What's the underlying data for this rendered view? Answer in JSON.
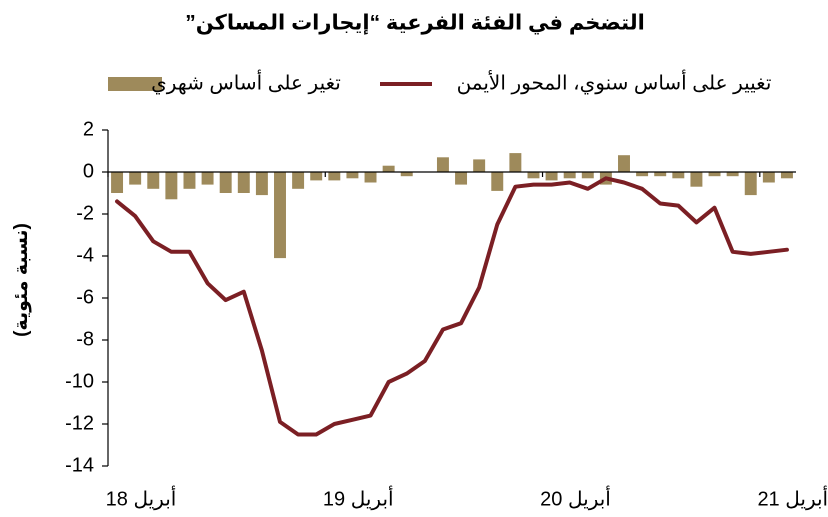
{
  "chart_data": {
    "type": "bar-line",
    "title": "التضخم في الفئة الفرعية “إيجارات المساكن”",
    "y_label": "(نسبة مئوية)",
    "categories": [
      "أبريل 18",
      null,
      null,
      null,
      null,
      null,
      null,
      null,
      null,
      null,
      null,
      null,
      "أبريل 19",
      null,
      null,
      null,
      null,
      null,
      null,
      null,
      null,
      null,
      null,
      null,
      "أبريل 20",
      null,
      null,
      null,
      null,
      null,
      null,
      null,
      null,
      null,
      null,
      null,
      "أبريل 21",
      null
    ],
    "series": [
      {
        "name": "تغير على أساس شهري",
        "type": "bar",
        "color": "#9e8a5b",
        "values": [
          -1.0,
          -0.6,
          -0.8,
          -1.3,
          -0.8,
          -0.6,
          -1.0,
          -1.0,
          -1.1,
          -4.1,
          -0.8,
          -0.4,
          -0.4,
          -0.3,
          -0.5,
          0.3,
          -0.2,
          0.0,
          0.7,
          -0.6,
          0.6,
          -0.9,
          0.9,
          -0.3,
          -0.4,
          -0.3,
          -0.3,
          -0.6,
          0.8,
          -0.2,
          -0.2,
          -0.3,
          -0.7,
          -0.2,
          -0.2,
          -1.1,
          -0.5,
          -0.3
        ]
      },
      {
        "name": "تغيير على أساس سنوي، المحور الأيمن",
        "type": "line",
        "color": "#7b1f24",
        "values": [
          -1.4,
          -2.1,
          -3.3,
          -3.8,
          -3.8,
          -5.3,
          -6.1,
          -5.7,
          -8.5,
          -11.9,
          -12.5,
          -12.5,
          -12.0,
          -11.8,
          -11.6,
          -10.0,
          -9.6,
          -9.0,
          -7.5,
          -7.2,
          -5.5,
          -2.5,
          -0.7,
          -0.6,
          -0.6,
          -0.5,
          -0.8,
          -0.3,
          -0.5,
          -0.8,
          -1.5,
          -1.6,
          -2.4,
          -1.7,
          -3.8,
          -3.9,
          -3.8,
          -3.7
        ]
      }
    ],
    "ylim": [
      -14,
      2
    ],
    "yticks": [
      2,
      0,
      -2,
      -4,
      -6,
      -8,
      -10,
      -12,
      -14
    ]
  }
}
